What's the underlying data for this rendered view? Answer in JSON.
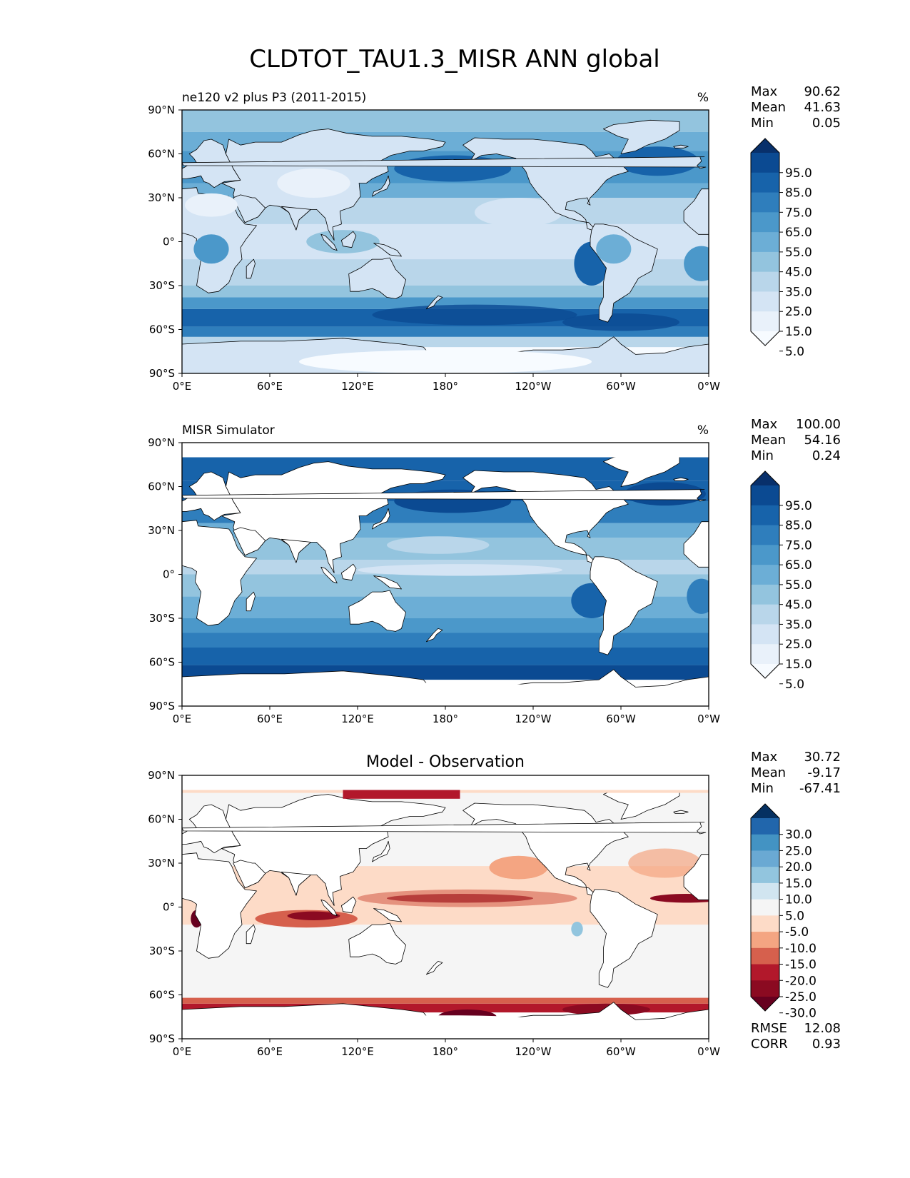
{
  "title": "CLDTOT_TAU1.3_MISR ANN global",
  "lat_ticks": [
    "90°N",
    "60°N",
    "30°N",
    "0°",
    "30°S",
    "60°S",
    "90°S"
  ],
  "lon_ticks": [
    "0°E",
    "60°E",
    "120°E",
    "180°",
    "120°W",
    "60°W",
    "0°W"
  ],
  "panels": [
    {
      "title_left": "ne120 v2 plus P3 (2011-2015)",
      "title_center": "",
      "units": "%",
      "stats": [
        {
          "label": "Max",
          "value": "90.62"
        },
        {
          "label": "Mean",
          "value": "41.63"
        },
        {
          "label": "Min",
          "value": "0.05"
        }
      ],
      "colorbar": {
        "labels": [
          "95.0",
          "85.0",
          "75.0",
          "65.0",
          "55.0",
          "45.0",
          "35.0",
          "25.0",
          "15.0",
          "5.0"
        ],
        "colors": [
          "#08306b",
          "#0b4a92",
          "#1763aa",
          "#2f7ebc",
          "#4b98ca",
          "#6caed6",
          "#93c4de",
          "#b9d6ea",
          "#d4e4f4",
          "#e9f1fa",
          "#f7fbff"
        ]
      },
      "map_type": "model"
    },
    {
      "title_left": "MISR Simulator",
      "title_center": "",
      "units": "%",
      "stats": [
        {
          "label": "Max",
          "value": "100.00"
        },
        {
          "label": "Mean",
          "value": "54.16"
        },
        {
          "label": "Min",
          "value": "0.24"
        }
      ],
      "colorbar": {
        "labels": [
          "95.0",
          "85.0",
          "75.0",
          "65.0",
          "55.0",
          "45.0",
          "35.0",
          "25.0",
          "15.0",
          "5.0"
        ],
        "colors": [
          "#08306b",
          "#0b4a92",
          "#1763aa",
          "#2f7ebc",
          "#4b98ca",
          "#6caed6",
          "#93c4de",
          "#b9d6ea",
          "#d4e4f4",
          "#e9f1fa",
          "#f7fbff"
        ]
      },
      "map_type": "obs"
    },
    {
      "title_left": "",
      "title_center": "Model - Observation",
      "units": "",
      "stats": [
        {
          "label": "Max",
          "value": "30.72"
        },
        {
          "label": "Mean",
          "value": "-9.17"
        },
        {
          "label": "Min",
          "value": "-67.41"
        }
      ],
      "colorbar": {
        "labels": [
          "30.0",
          "25.0",
          "20.0",
          "15.0",
          "10.0",
          "5.0",
          "-5.0",
          "-10.0",
          "-15.0",
          "-20.0",
          "-25.0",
          "-30.0"
        ],
        "colors": [
          "#053061",
          "#2166ac",
          "#4393c3",
          "#6aa9d3",
          "#92c5de",
          "#d1e5f0",
          "#f5f5f5",
          "#fddbc7",
          "#f4a582",
          "#d6604d",
          "#b2182b",
          "#8b0a21",
          "#67001f"
        ]
      },
      "map_type": "diff",
      "extra_stats": [
        {
          "label": "RMSE",
          "value": "12.08"
        },
        {
          "label": "CORR",
          "value": "0.93"
        }
      ]
    }
  ]
}
